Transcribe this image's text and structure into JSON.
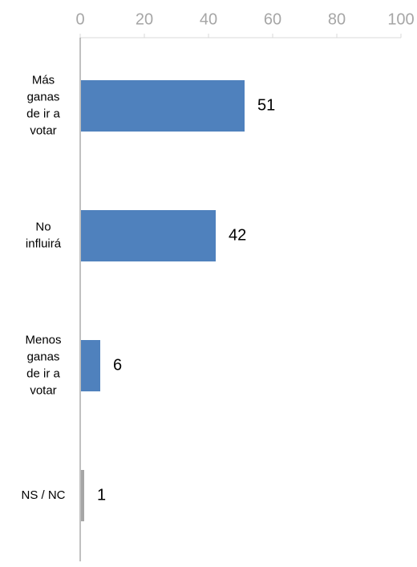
{
  "chart_data": {
    "type": "bar",
    "orientation": "horizontal",
    "title": "",
    "xlabel": "",
    "ylabel": "",
    "xlim": [
      0,
      100
    ],
    "x_ticks": [
      0,
      20,
      40,
      60,
      80,
      100
    ],
    "x_tick_labels": [
      "0",
      "20",
      "40",
      "60",
      "80",
      "100"
    ],
    "x_axis_position": "top",
    "grid": false,
    "legend": "none",
    "categories": [
      "Más ganas de ir a votar",
      "No influirá",
      "Menos ganas de ir a votar",
      "NS / NC"
    ],
    "category_label_lines": [
      [
        "Más",
        "ganas",
        "de ir a",
        "votar"
      ],
      [
        "No",
        "influirá"
      ],
      [
        "Menos",
        "ganas",
        "de ir a",
        "votar"
      ],
      [
        "NS / NC"
      ]
    ],
    "values": [
      51,
      42,
      6,
      1
    ],
    "data_labels": [
      "51",
      "42",
      "6",
      "1"
    ],
    "bar_colors": [
      "#4f81bd",
      "#4f81bd",
      "#4f81bd",
      "#a6a6a6"
    ]
  }
}
